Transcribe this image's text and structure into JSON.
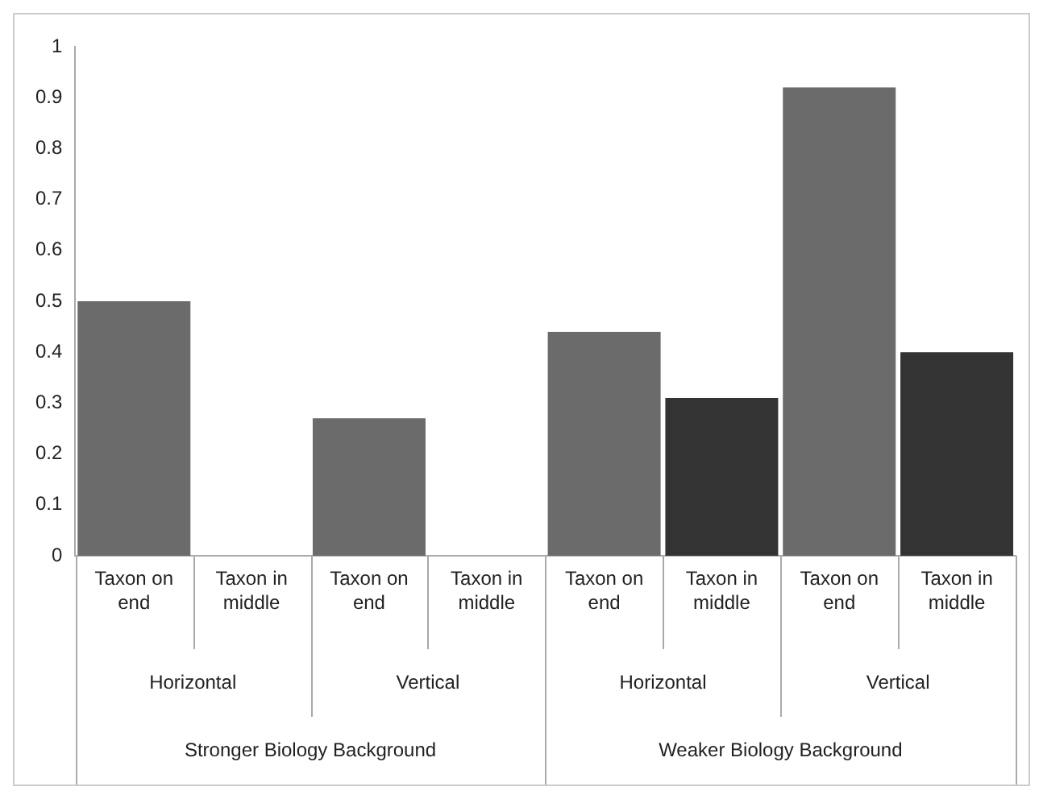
{
  "chart_data": {
    "type": "bar",
    "categories": [
      "Taxon on end",
      "Taxon in middle",
      "Taxon on end",
      "Taxon in middle",
      "Taxon on end",
      "Taxon in middle",
      "Taxon on end",
      "Taxon in middle"
    ],
    "values": [
      0.5,
      0,
      0.27,
      0,
      0.44,
      0.31,
      0.92,
      0.4
    ],
    "colors": [
      "#6b6b6b",
      "#333333",
      "#6b6b6b",
      "#333333",
      "#6b6b6b",
      "#333333",
      "#6b6b6b",
      "#333333"
    ],
    "ylim": [
      0,
      1
    ],
    "yticks": [
      0,
      0.1,
      0.2,
      0.3,
      0.4,
      0.5,
      0.6,
      0.7,
      0.8,
      0.9,
      1
    ],
    "annotations": [
      "Horizontal",
      "Vertical",
      "Horizontal",
      "Vertical",
      "Stronger Biology Background",
      "Weaker Biology Background"
    ],
    "grid": false,
    "legend": false
  }
}
